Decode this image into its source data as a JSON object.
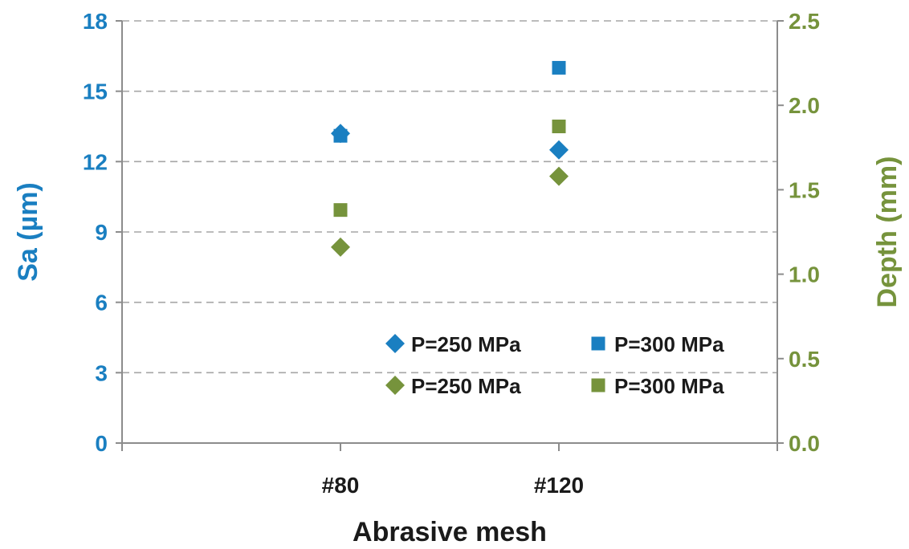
{
  "chart_data": {
    "type": "scatter",
    "categories": [
      "#80",
      "#120"
    ],
    "xlabel": "Abrasive mesh",
    "y_left": {
      "label": "Sa (µm)",
      "lim": [
        0,
        18
      ],
      "ticks": [
        "0",
        "3",
        "6",
        "9",
        "12",
        "15",
        "18"
      ],
      "color": "#1a7fc1"
    },
    "y_right": {
      "label": "Depth (mm)",
      "lim": [
        0,
        2.5
      ],
      "ticks": [
        "0.0",
        "0.5",
        "1.0",
        "1.5",
        "2.0",
        "2.5"
      ],
      "color": "#76933c"
    },
    "series": [
      {
        "name": "P=250 MPa",
        "axis": "left",
        "marker": "diamond",
        "color": "#1a7fc1",
        "values": [
          13.2,
          12.5
        ]
      },
      {
        "name": "P=300 MPa",
        "axis": "left",
        "marker": "square",
        "color": "#1a7fc1",
        "values": [
          13.1,
          16.0
        ]
      },
      {
        "name": "P=250 MPa",
        "axis": "right",
        "marker": "diamond",
        "color": "#76933c",
        "values": [
          1.16,
          1.58
        ]
      },
      {
        "name": "P=300 MPa",
        "axis": "right",
        "marker": "square",
        "color": "#76933c",
        "values": [
          1.38,
          1.875
        ]
      }
    ],
    "grid": "horizontal dashed",
    "legend": "bottom-right"
  }
}
